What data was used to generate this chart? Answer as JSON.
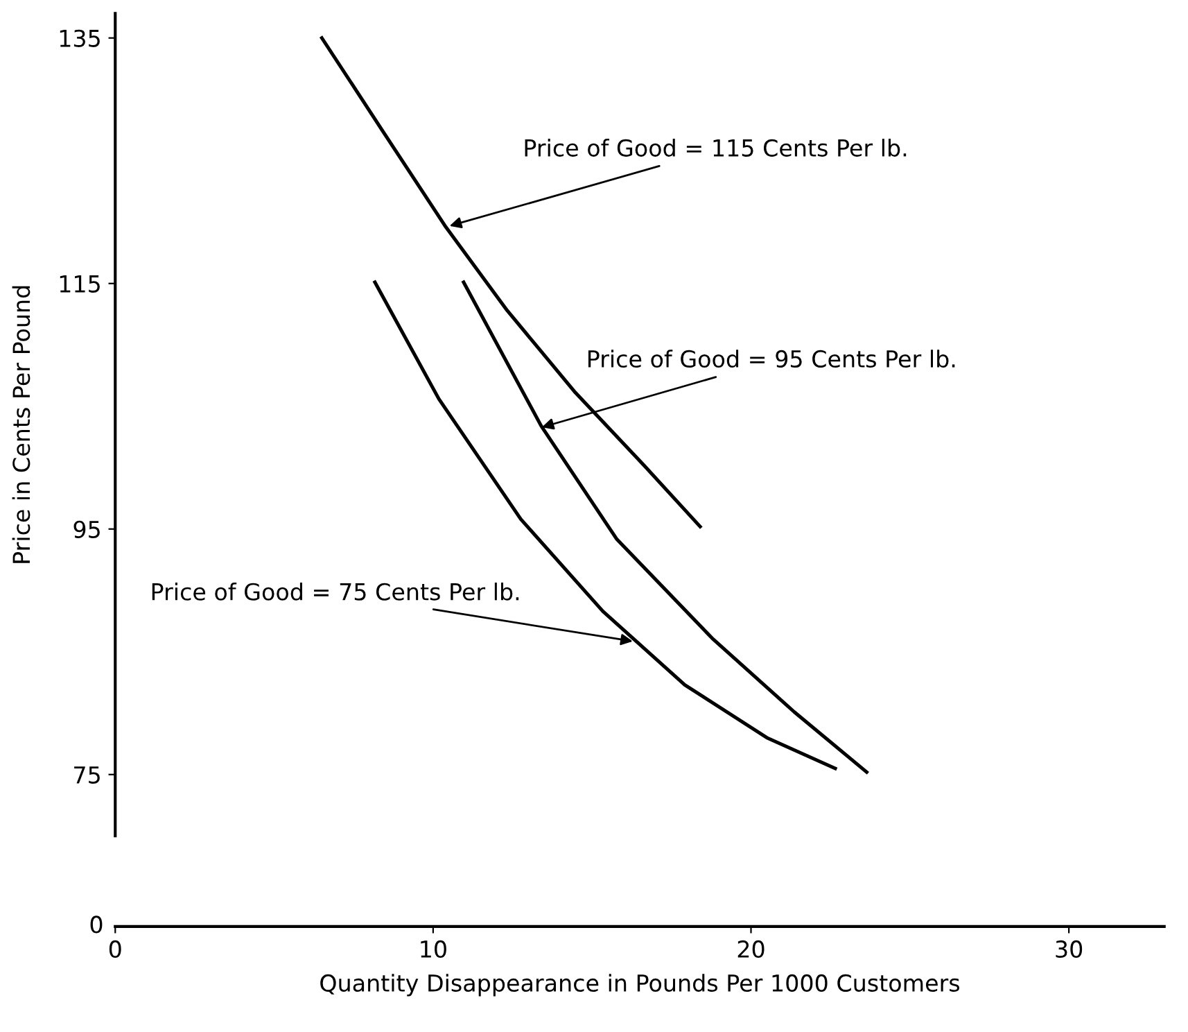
{
  "chart_data": {
    "type": "line",
    "ylabel": "Price in Cents Per Pound",
    "xlabel": "Quantity Disappearance in Pounds Per 1000 Customers",
    "xlim": [
      0,
      33
    ],
    "xticks": [
      0,
      10,
      20,
      30
    ],
    "ylim": [
      70,
      137
    ],
    "yticks": [
      75,
      95,
      115,
      135
    ],
    "grid": false,
    "line_style": "solid",
    "marker": "none",
    "series": [
      {
        "color": "#000000",
        "x": [
          6.5,
          8.47,
          10.4,
          12.33,
          14.48,
          16.63,
          18.4
        ],
        "values": [
          135,
          127.2,
          119.6,
          112.8,
          106.1,
          100.2,
          95.2
        ]
      },
      {
        "color": "#000000",
        "x": [
          10.96,
          13.4,
          15.77,
          18.78,
          21.36,
          23.64
        ],
        "values": [
          115.1,
          103.4,
          94.2,
          86.1,
          80.1,
          75.2
        ]
      },
      {
        "color": "#000000",
        "x": [
          8.17,
          10.18,
          12.76,
          15.34,
          17.92,
          20.5,
          22.65
        ],
        "values": [
          115.1,
          105.6,
          95.8,
          88.3,
          82.3,
          78,
          75.5
        ]
      }
    ],
    "annotations": [
      {
        "text": "Price of Good = 115 Cents Per lb.",
        "x": 10.4,
        "y": 119.6
      },
      {
        "text": "Price of Good = 95 Cents Per lb.",
        "x": 13.3,
        "y": 103.2
      },
      {
        "text": "Price of Good = 75 Cents Per lb.",
        "x": 16.4,
        "y": 85.8
      },
      "0"
    ]
  }
}
